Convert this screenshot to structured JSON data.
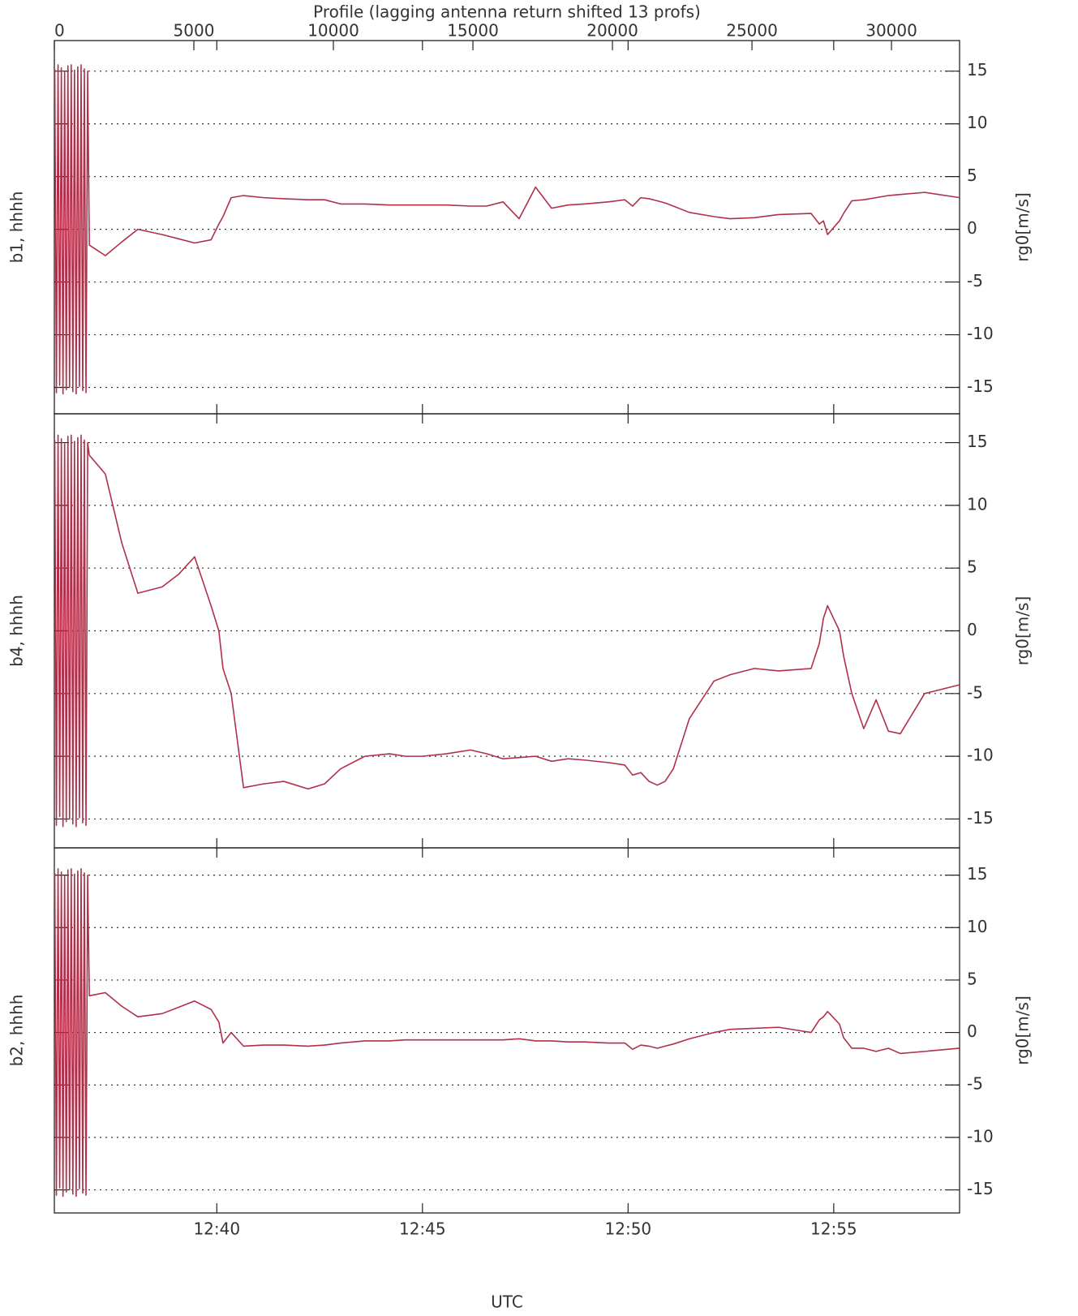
{
  "chart_data": {
    "type": "line",
    "x2label": "Profile (lagging antenna return shifted 13 profs)",
    "x2lim": [
      0,
      32440
    ],
    "x2ticks": [
      0,
      5000,
      10000,
      15000,
      20000,
      25000,
      30000
    ],
    "xlabel": "UTC",
    "xlim": [
      756.05,
      778.06
    ],
    "xticks": [
      {
        "value": 760,
        "label": "12:40"
      },
      {
        "value": 765,
        "label": "12:45"
      },
      {
        "value": 770,
        "label": "12:50"
      },
      {
        "value": 775,
        "label": "12:55"
      }
    ],
    "value_axis_label": "rg0[m/s]",
    "grid": true,
    "x": [
      756.06,
      756.1,
      756.14,
      756.18,
      756.22,
      756.26,
      756.3,
      756.34,
      756.38,
      756.42,
      756.46,
      756.5,
      756.54,
      756.58,
      756.62,
      756.66,
      756.7,
      756.74,
      756.78,
      756.82,
      756.86,
      756.9,
      757.29,
      757.69,
      758.08,
      758.67,
      759.07,
      759.46,
      759.86,
      760.05,
      760.15,
      760.35,
      760.65,
      761.14,
      761.63,
      762.22,
      762.62,
      763.01,
      763.6,
      764.2,
      764.59,
      764.99,
      765.58,
      766.17,
      766.56,
      766.96,
      767.35,
      767.75,
      768.14,
      768.54,
      768.93,
      769.52,
      769.92,
      770.11,
      770.31,
      770.51,
      770.71,
      770.9,
      771.1,
      771.49,
      772.09,
      772.48,
      773.07,
      773.66,
      774.45,
      774.65,
      774.75,
      774.85,
      775.14,
      775.24,
      775.44,
      775.73,
      776.03,
      776.33,
      776.62,
      777.21,
      778.06
    ],
    "panels": [
      {
        "label": "b1, hhhh",
        "ylim": [
          -17.5,
          17.9
        ],
        "yticks": [
          15,
          10,
          5,
          0,
          -5,
          -10,
          -15
        ],
        "series": [
          {
            "color": "#b0304a",
            "values": [
              15.2,
              -15.5,
              15.6,
              -14.8,
              15.3,
              -15.6,
              14.9,
              -15.2,
              15.5,
              -15.0,
              15.6,
              -15.4,
              15.1,
              -15.6,
              15.4,
              -14.9,
              15.6,
              -15.3,
              15.2,
              -15.5,
              15.0,
              -1.5,
              -2.5,
              -1.2,
              0,
              -0.5,
              -0.9,
              -1.3,
              -1,
              0.5,
              1.2,
              3,
              3.2,
              3.0,
              2.9,
              2.8,
              2.8,
              2.4,
              2.4,
              2.3,
              2.3,
              2.3,
              2.3,
              2.2,
              2.2,
              2.6,
              1.0,
              4.0,
              2.0,
              2.3,
              2.4,
              2.6,
              2.8,
              2.2,
              3.0,
              2.9,
              2.7,
              2.5,
              2.2,
              1.6,
              1.2,
              1.0,
              1.1,
              1.4,
              1.5,
              0.5,
              0.8,
              -0.5,
              0.8,
              1.5,
              2.7,
              2.8,
              3.0,
              3.2,
              3.3,
              3.5,
              3.0
            ]
          }
        ]
      },
      {
        "label": "b4, hhhh",
        "ylim": [
          -17.3,
          17.3
        ],
        "yticks": [
          15,
          10,
          5,
          0,
          -5,
          -10,
          -15
        ],
        "series": [
          {
            "color": "#b0304a",
            "values": [
              15.2,
              -15.5,
              15.6,
              -14.8,
              15.3,
              -15.6,
              14.9,
              -15.2,
              15.5,
              -15.0,
              15.6,
              -15.4,
              15.1,
              -15.6,
              15.4,
              -14.9,
              15.6,
              -15.3,
              15.2,
              -15.5,
              15.0,
              14,
              12.5,
              7,
              3,
              3.5,
              4.5,
              5.9,
              2,
              0,
              -3,
              -5,
              -12.5,
              -12.2,
              -12,
              -12.6,
              -12.2,
              -11,
              -10,
              -9.8,
              -10,
              -10,
              -9.8,
              -9.5,
              -9.8,
              -10.2,
              -10.1,
              -10,
              -10.4,
              -10.2,
              -10.3,
              -10.5,
              -10.7,
              -11.5,
              -11.3,
              -12,
              -12.3,
              -12,
              -11,
              -7,
              -4,
              -3.5,
              -3,
              -3.2,
              -3,
              -1,
              1,
              2,
              0,
              -2,
              -5,
              -7.8,
              -5.5,
              -8,
              -8.2,
              -5,
              -4.3
            ]
          }
        ]
      },
      {
        "label": "b2, hhhh",
        "ylim": [
          -17.2,
          17.6
        ],
        "yticks": [
          15,
          10,
          5,
          0,
          -5,
          -10,
          -15
        ],
        "series": [
          {
            "color": "#b0304a",
            "values": [
              15.2,
              -15.5,
              15.6,
              -14.8,
              15.3,
              -15.6,
              14.9,
              -15.2,
              15.5,
              -15.0,
              15.6,
              -15.4,
              15.1,
              -15.6,
              15.4,
              -14.9,
              15.6,
              -15.3,
              15.2,
              -15.5,
              15.0,
              3.5,
              3.8,
              2.5,
              1.5,
              1.8,
              2.4,
              3,
              2.2,
              1,
              -1,
              0,
              -1.3,
              -1.2,
              -1.2,
              -1.3,
              -1.2,
              -1.0,
              -0.8,
              -0.8,
              -0.7,
              -0.7,
              -0.7,
              -0.7,
              -0.7,
              -0.7,
              -0.6,
              -0.8,
              -0.8,
              -0.9,
              -0.9,
              -1.0,
              -1.0,
              -1.6,
              -1.2,
              -1.3,
              -1.5,
              -1.3,
              -1.1,
              -0.6,
              0,
              0.3,
              0.4,
              0.5,
              0,
              1.2,
              1.5,
              2,
              0.8,
              -0.5,
              -1.5,
              -1.5,
              -1.8,
              -1.5,
              -2,
              -1.8,
              -1.5
            ]
          }
        ]
      }
    ]
  }
}
